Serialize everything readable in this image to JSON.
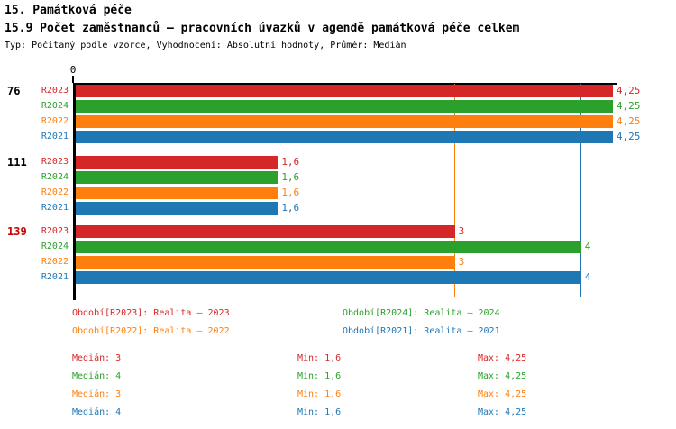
{
  "header": {
    "title": "15. Památková péče",
    "subtitle": "15.9 Počet zaměstnanců – pracovních úvazků v agendě památková péče celkem",
    "meta": "Typ: Počítaný podle vzorce, Vyhodnocení: Absolutní hodnoty, Průměr: Medián"
  },
  "colors": {
    "R2023": "#d62728",
    "R2024": "#2ca02c",
    "R2022": "#ff7f0e",
    "R2021": "#1f77b4",
    "group_label_normal": "#000000",
    "group_label_highlight": "#cc0000",
    "axis": "#000000"
  },
  "chart_data": {
    "type": "bar",
    "orientation": "horizontal",
    "xlim": [
      0,
      4.25
    ],
    "x_tick_labels": [
      "0"
    ],
    "grid": false,
    "series_order": [
      "R2023",
      "R2024",
      "R2022",
      "R2021"
    ],
    "groups": [
      {
        "label": "76",
        "highlighted": false,
        "bars": [
          {
            "series": "R2023",
            "value": 4.25,
            "display": "4,25"
          },
          {
            "series": "R2024",
            "value": 4.25,
            "display": "4,25"
          },
          {
            "series": "R2022",
            "value": 4.25,
            "display": "4,25"
          },
          {
            "series": "R2021",
            "value": 4.25,
            "display": "4,25"
          }
        ]
      },
      {
        "label": "111",
        "highlighted": false,
        "bars": [
          {
            "series": "R2023",
            "value": 1.6,
            "display": "1,6"
          },
          {
            "series": "R2024",
            "value": 1.6,
            "display": "1,6"
          },
          {
            "series": "R2022",
            "value": 1.6,
            "display": "1,6"
          },
          {
            "series": "R2021",
            "value": 1.6,
            "display": "1,6"
          }
        ]
      },
      {
        "label": "139",
        "highlighted": true,
        "bars": [
          {
            "series": "R2023",
            "value": 3,
            "display": "3"
          },
          {
            "series": "R2024",
            "value": 4,
            "display": "4"
          },
          {
            "series": "R2022",
            "value": 3,
            "display": "3"
          },
          {
            "series": "R2021",
            "value": 4,
            "display": "4"
          }
        ]
      }
    ],
    "reference_lines": [
      {
        "series": "R2023",
        "value": 3
      },
      {
        "series": "R2024",
        "value": 4
      },
      {
        "series": "R2022",
        "value": 3
      },
      {
        "series": "R2021",
        "value": 4
      }
    ]
  },
  "legend": {
    "items": [
      {
        "series": "R2023",
        "label": "Období[R2023]: Realita – 2023"
      },
      {
        "series": "R2024",
        "label": "Období[R2024]: Realita – 2024"
      },
      {
        "series": "R2022",
        "label": "Období[R2022]: Realita – 2022"
      },
      {
        "series": "R2021",
        "label": "Období[R2021]: Realita – 2021"
      }
    ]
  },
  "stats": {
    "rows": [
      {
        "series": "R2023",
        "median": "Medián: 3",
        "min": "Min: 1,6",
        "max": "Max: 4,25"
      },
      {
        "series": "R2024",
        "median": "Medián: 4",
        "min": "Min: 1,6",
        "max": "Max: 4,25"
      },
      {
        "series": "R2022",
        "median": "Medián: 3",
        "min": "Min: 1,6",
        "max": "Max: 4,25"
      },
      {
        "series": "R2021",
        "median": "Medián: 4",
        "min": "Min: 1,6",
        "max": "Max: 4,25"
      }
    ]
  }
}
